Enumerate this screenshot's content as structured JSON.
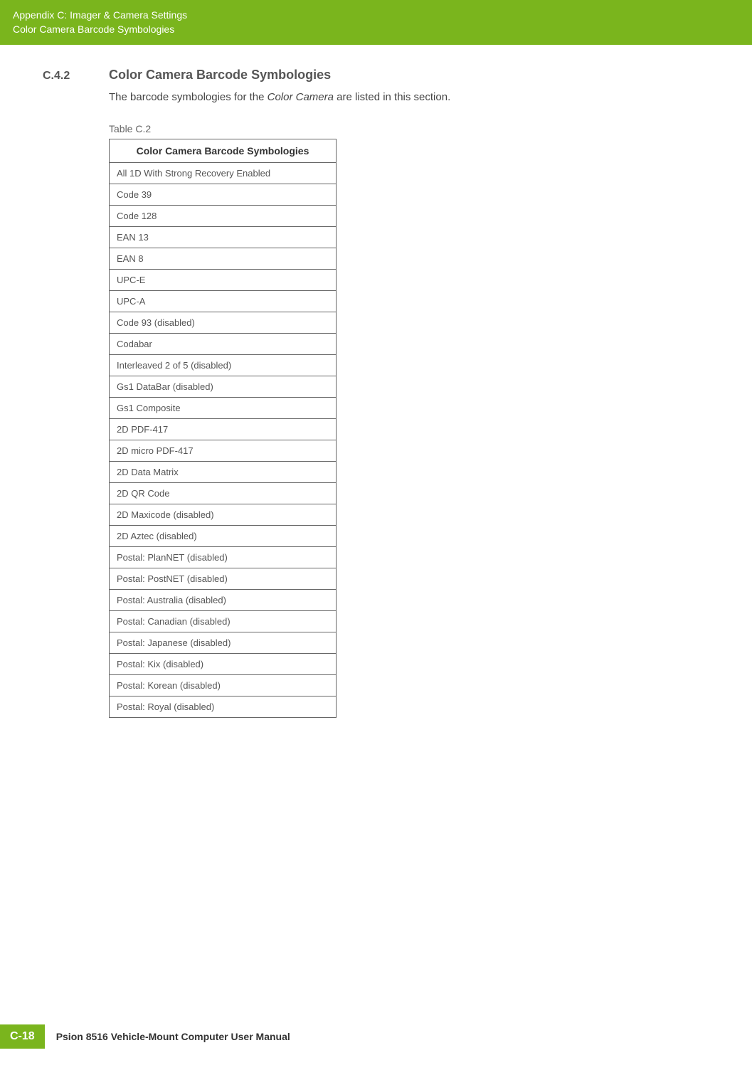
{
  "header": {
    "line1": "Appendix C: Imager & Camera Settings",
    "line2": "Color Camera Barcode Symbologies"
  },
  "section": {
    "number": "C.4.2",
    "title": "Color Camera Barcode Symbologies"
  },
  "intro": {
    "prefix": "The barcode symbologies for the ",
    "italic": "Color Camera",
    "suffix": " are listed in this section."
  },
  "table": {
    "caption": "Table C.2",
    "header": "Color Camera Barcode Symbologies",
    "rows": [
      "All 1D With Strong Recovery Enabled",
      "Code 39",
      "Code 128",
      "EAN 13",
      "EAN 8",
      "UPC-E",
      "UPC-A",
      "Code 93 (disabled)",
      "Codabar",
      "Interleaved 2 of 5 (disabled)",
      "Gs1 DataBar (disabled)",
      "Gs1 Composite",
      "2D PDF-417",
      "2D micro PDF-417",
      "2D Data Matrix",
      "2D QR Code",
      "2D Maxicode (disabled)",
      "2D Aztec (disabled)",
      "Postal: PlanNET (disabled)",
      "Postal: PostNET (disabled)",
      "Postal: Australia (disabled)",
      "Postal: Canadian (disabled)",
      "Postal: Japanese (disabled)",
      "Postal: Kix (disabled)",
      "Postal: Korean (disabled)",
      "Postal: Royal (disabled)"
    ]
  },
  "footer": {
    "page_number": "C-18",
    "text": "Psion 8516 Vehicle-Mount Computer User Manual"
  },
  "colors": {
    "accent": "#7ab51d",
    "text_dark": "#333333",
    "text_body": "#444444",
    "text_muted": "#666666",
    "border": "#666666"
  }
}
